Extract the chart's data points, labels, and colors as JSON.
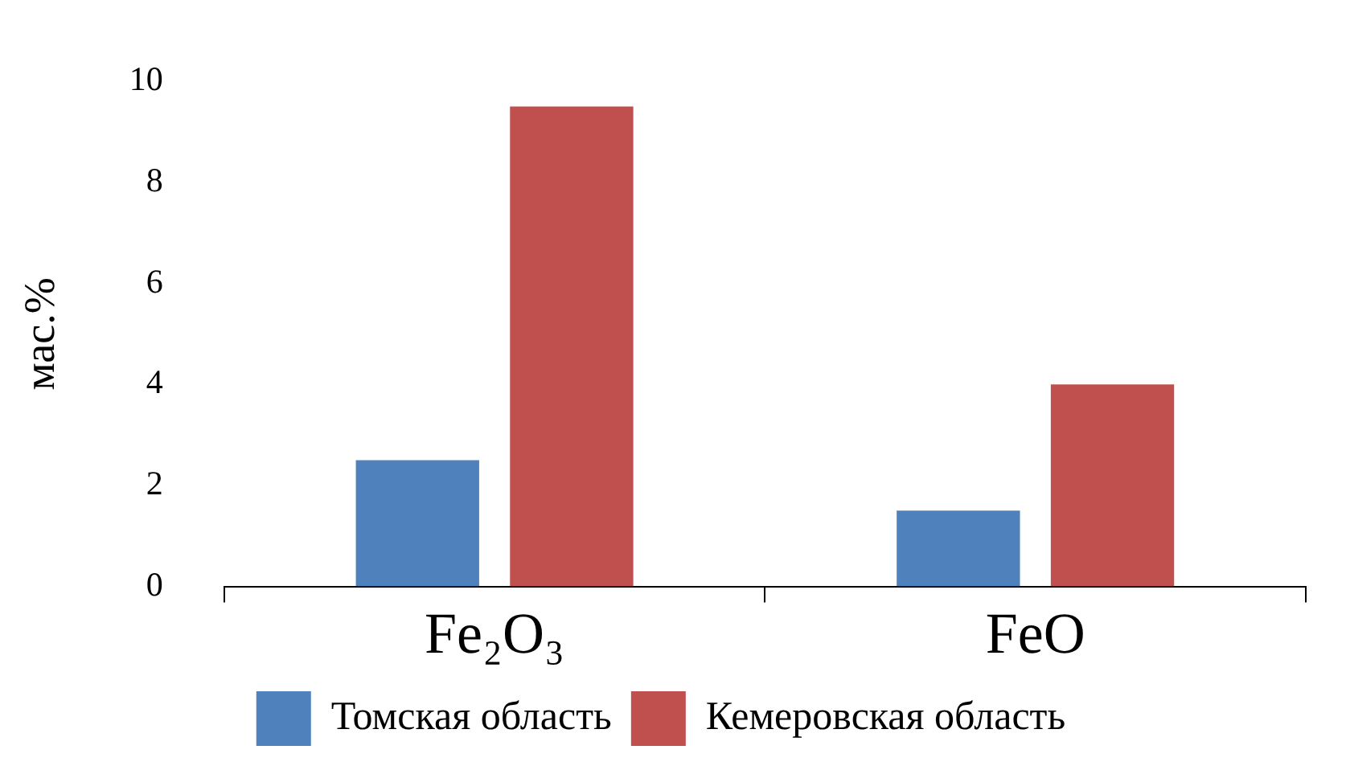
{
  "chart_data": {
    "type": "bar",
    "ylabel": "мас.%",
    "categories": [
      "Fe₂O₃",
      "FeO"
    ],
    "series": [
      {
        "name": "Томская область",
        "color": "#4f81bd",
        "values": [
          2.5,
          1.5
        ]
      },
      {
        "name": "Кемеровская область",
        "color": "#c0504d",
        "values": [
          9.5,
          4.0
        ]
      }
    ],
    "ylim": [
      0,
      10
    ],
    "yticks": [
      0,
      2,
      4,
      6,
      8,
      10
    ],
    "legend": "bottom"
  }
}
